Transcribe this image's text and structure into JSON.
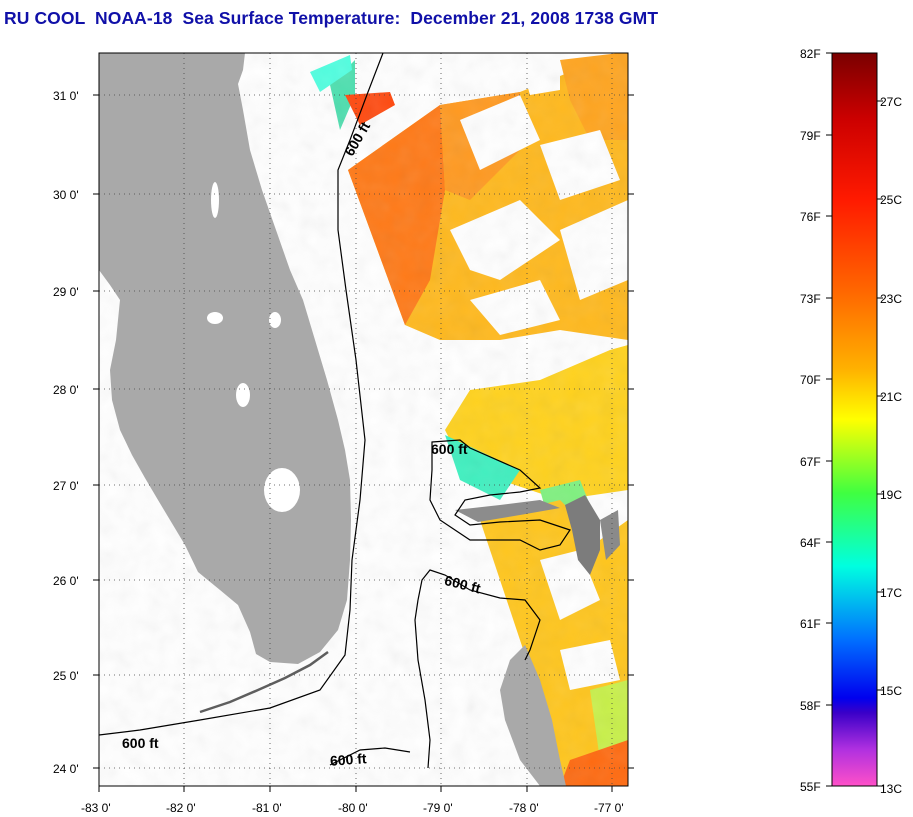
{
  "title": "RU COOL  NOAA-18  Sea Surface Temperature:  December 21, 2008 1738 GMT",
  "map": {
    "lon_range": [
      -83,
      -76.8
    ],
    "lat_range": [
      23.85,
      31.45
    ],
    "longitude_labels": [
      "-83 0'",
      "-82 0'",
      "-81 0'",
      "-80 0'",
      "-79 0'",
      "-78 0'",
      "-77 0'"
    ],
    "latitude_labels": [
      "31 0'",
      "30 0'",
      "29 0'",
      "28 0'",
      "27 0'",
      "26 0'",
      "25 0'",
      "24 0'"
    ],
    "grid": "dotted",
    "land_color": "#a9a9a9",
    "contour_labels": [
      "600 ft",
      "600 ft",
      "600 ft",
      "600 ft",
      "600 ft"
    ]
  },
  "colorbar": {
    "fahrenheit_labels": [
      "82F",
      "79F",
      "76F",
      "73F",
      "70F",
      "67F",
      "64F",
      "61F",
      "58F",
      "55F"
    ],
    "celsius_labels": [
      "27C",
      "25C",
      "23C",
      "21C",
      "19C",
      "17C",
      "15C",
      "13C"
    ],
    "colors_top_to_bottom": [
      "#8b0000",
      "#ff0000",
      "#ff5a00",
      "#ffa500",
      "#ffff00",
      "#00ff00",
      "#00ffff",
      "#0080ff",
      "#0000ff",
      "#8000ff",
      "#ff40c0"
    ]
  }
}
